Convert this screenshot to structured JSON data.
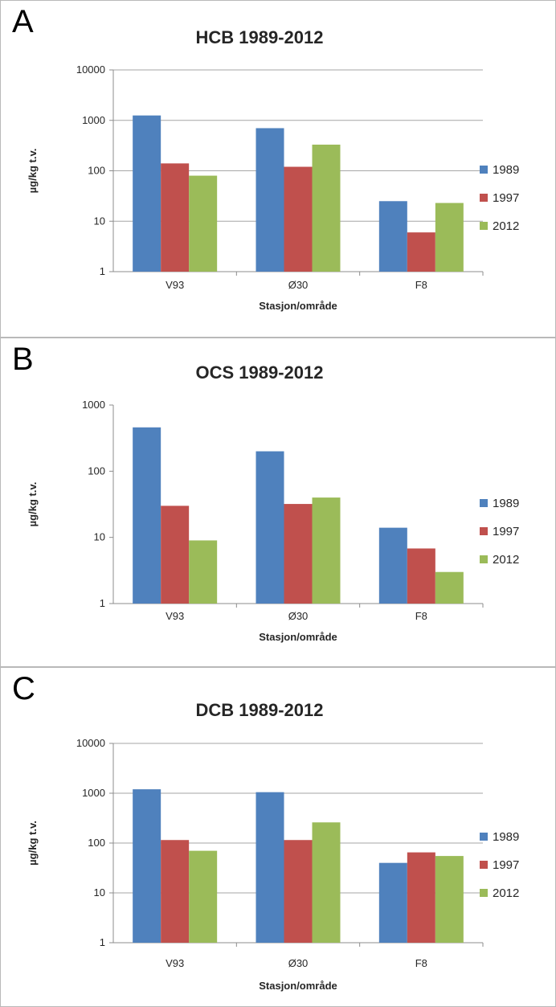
{
  "colors": {
    "1989": "#4f81bd",
    "1997": "#c0504d",
    "2012": "#9bbb59"
  },
  "chart_data": [
    {
      "panel": "A",
      "type": "bar",
      "title": "HCB 1989-2012",
      "xlabel": "Stasjon/område",
      "ylabel": "µg/kg t.v.",
      "yscale": "log",
      "ylim": [
        1,
        10000
      ],
      "yticks": [
        "1",
        "10",
        "100",
        "1000",
        "10000"
      ],
      "categories": [
        "V93",
        "Ø30",
        "F8"
      ],
      "series": [
        {
          "name": "1989",
          "values": [
            1250,
            700,
            25
          ]
        },
        {
          "name": "1997",
          "values": [
            140,
            120,
            6
          ]
        },
        {
          "name": "2012",
          "values": [
            80,
            330,
            23
          ]
        }
      ],
      "grid": true,
      "legend": "right"
    },
    {
      "panel": "B",
      "type": "bar",
      "title": "OCS 1989-2012",
      "xlabel": "Stasjon/område",
      "ylabel": "µg/kg t.v.",
      "yscale": "log",
      "ylim": [
        1,
        1000
      ],
      "yticks": [
        "1",
        "10",
        "100",
        "1000"
      ],
      "categories": [
        "V93",
        "Ø30",
        "F8"
      ],
      "series": [
        {
          "name": "1989",
          "values": [
            460,
            200,
            14
          ]
        },
        {
          "name": "1997",
          "values": [
            30,
            32,
            6.8
          ]
        },
        {
          "name": "2012",
          "values": [
            9,
            40,
            3
          ]
        }
      ],
      "grid": false,
      "legend": "right"
    },
    {
      "panel": "C",
      "type": "bar",
      "title": "DCB 1989-2012",
      "xlabel": "Stasjon/område",
      "ylabel": "µg/kg t.v.",
      "yscale": "log",
      "ylim": [
        1,
        10000
      ],
      "yticks": [
        "1",
        "10",
        "100",
        "1000",
        "10000"
      ],
      "categories": [
        "V93",
        "Ø30",
        "F8"
      ],
      "series": [
        {
          "name": "1989",
          "values": [
            1200,
            1050,
            40
          ]
        },
        {
          "name": "1997",
          "values": [
            115,
            115,
            65
          ]
        },
        {
          "name": "2012",
          "values": [
            70,
            260,
            55
          ]
        }
      ],
      "grid": true,
      "legend": "right"
    }
  ]
}
